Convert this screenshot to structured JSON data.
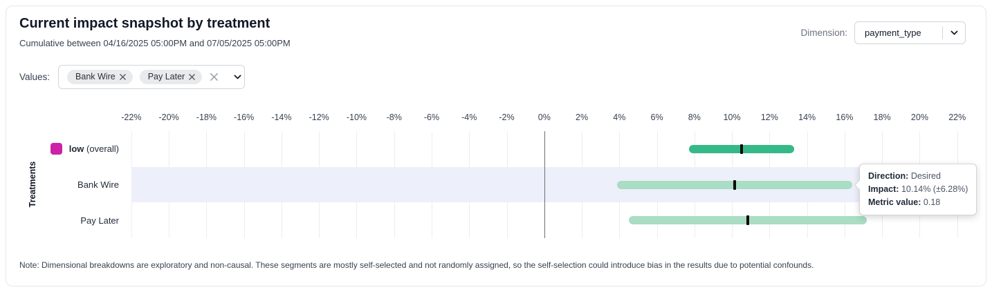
{
  "header": {
    "title": "Current impact snapshot by treatment",
    "subtitle": "Cumulative between 04/16/2025 05:00PM and 07/05/2025 05:00PM",
    "dimension_label": "Dimension:",
    "dimension_value": "payment_type"
  },
  "values_filter": {
    "label": "Values:",
    "chips": [
      "Bank Wire",
      "Pay Later"
    ]
  },
  "icons": {
    "chip_remove_icon": "x",
    "clear_icon": "x",
    "chevron_down_icon": "chevron-down"
  },
  "colors": {
    "overall_bar": "#35b988",
    "segment_bar": "#a9ddc4",
    "legend_swatch": "#cc22a8",
    "highlight_band": "#edeffa",
    "median_marker": "#0b0b0b"
  },
  "chart_data": {
    "type": "bar",
    "variant": "horizontal-interval",
    "title": "Current impact snapshot by treatment",
    "ylabel": "Treatments",
    "x_unit": "%",
    "xlim": [
      -23.1,
      22.6
    ],
    "grid": true,
    "ticks": [
      -22,
      -20,
      -18,
      -16,
      -14,
      -12,
      -10,
      -8,
      -6,
      -4,
      -2,
      0,
      2,
      4,
      6,
      8,
      10,
      12,
      14,
      16,
      18,
      20,
      22
    ],
    "rows": [
      {
        "label": "low",
        "suffix": "(overall)",
        "swatch": "#cc22a8",
        "low": 7.7,
        "mid": 10.5,
        "high": 13.3,
        "color": "#35b988",
        "highlighted": false,
        "bold": true
      },
      {
        "label": "Bank Wire",
        "suffix": "",
        "swatch": "",
        "low": 3.86,
        "mid": 10.14,
        "high": 16.42,
        "color": "#a9ddc4",
        "highlighted": true,
        "bold": false
      },
      {
        "label": "Pay Later",
        "suffix": "",
        "swatch": "",
        "low": 4.5,
        "mid": 10.85,
        "high": 17.2,
        "color": "#a9ddc4",
        "highlighted": false,
        "bold": false
      }
    ]
  },
  "tooltip": {
    "rows": [
      {
        "label": "Direction:",
        "value": "Desired"
      },
      {
        "label": "Impact:",
        "value": "10.14% (±6.28%)"
      },
      {
        "label": "Metric value:",
        "value": "0.18"
      }
    ]
  },
  "note": "Note: Dimensional breakdowns are exploratory and non-causal. These segments are mostly self-selected and not randomly assigned, so the self-selection could introduce bias in the results due to potential confounds."
}
